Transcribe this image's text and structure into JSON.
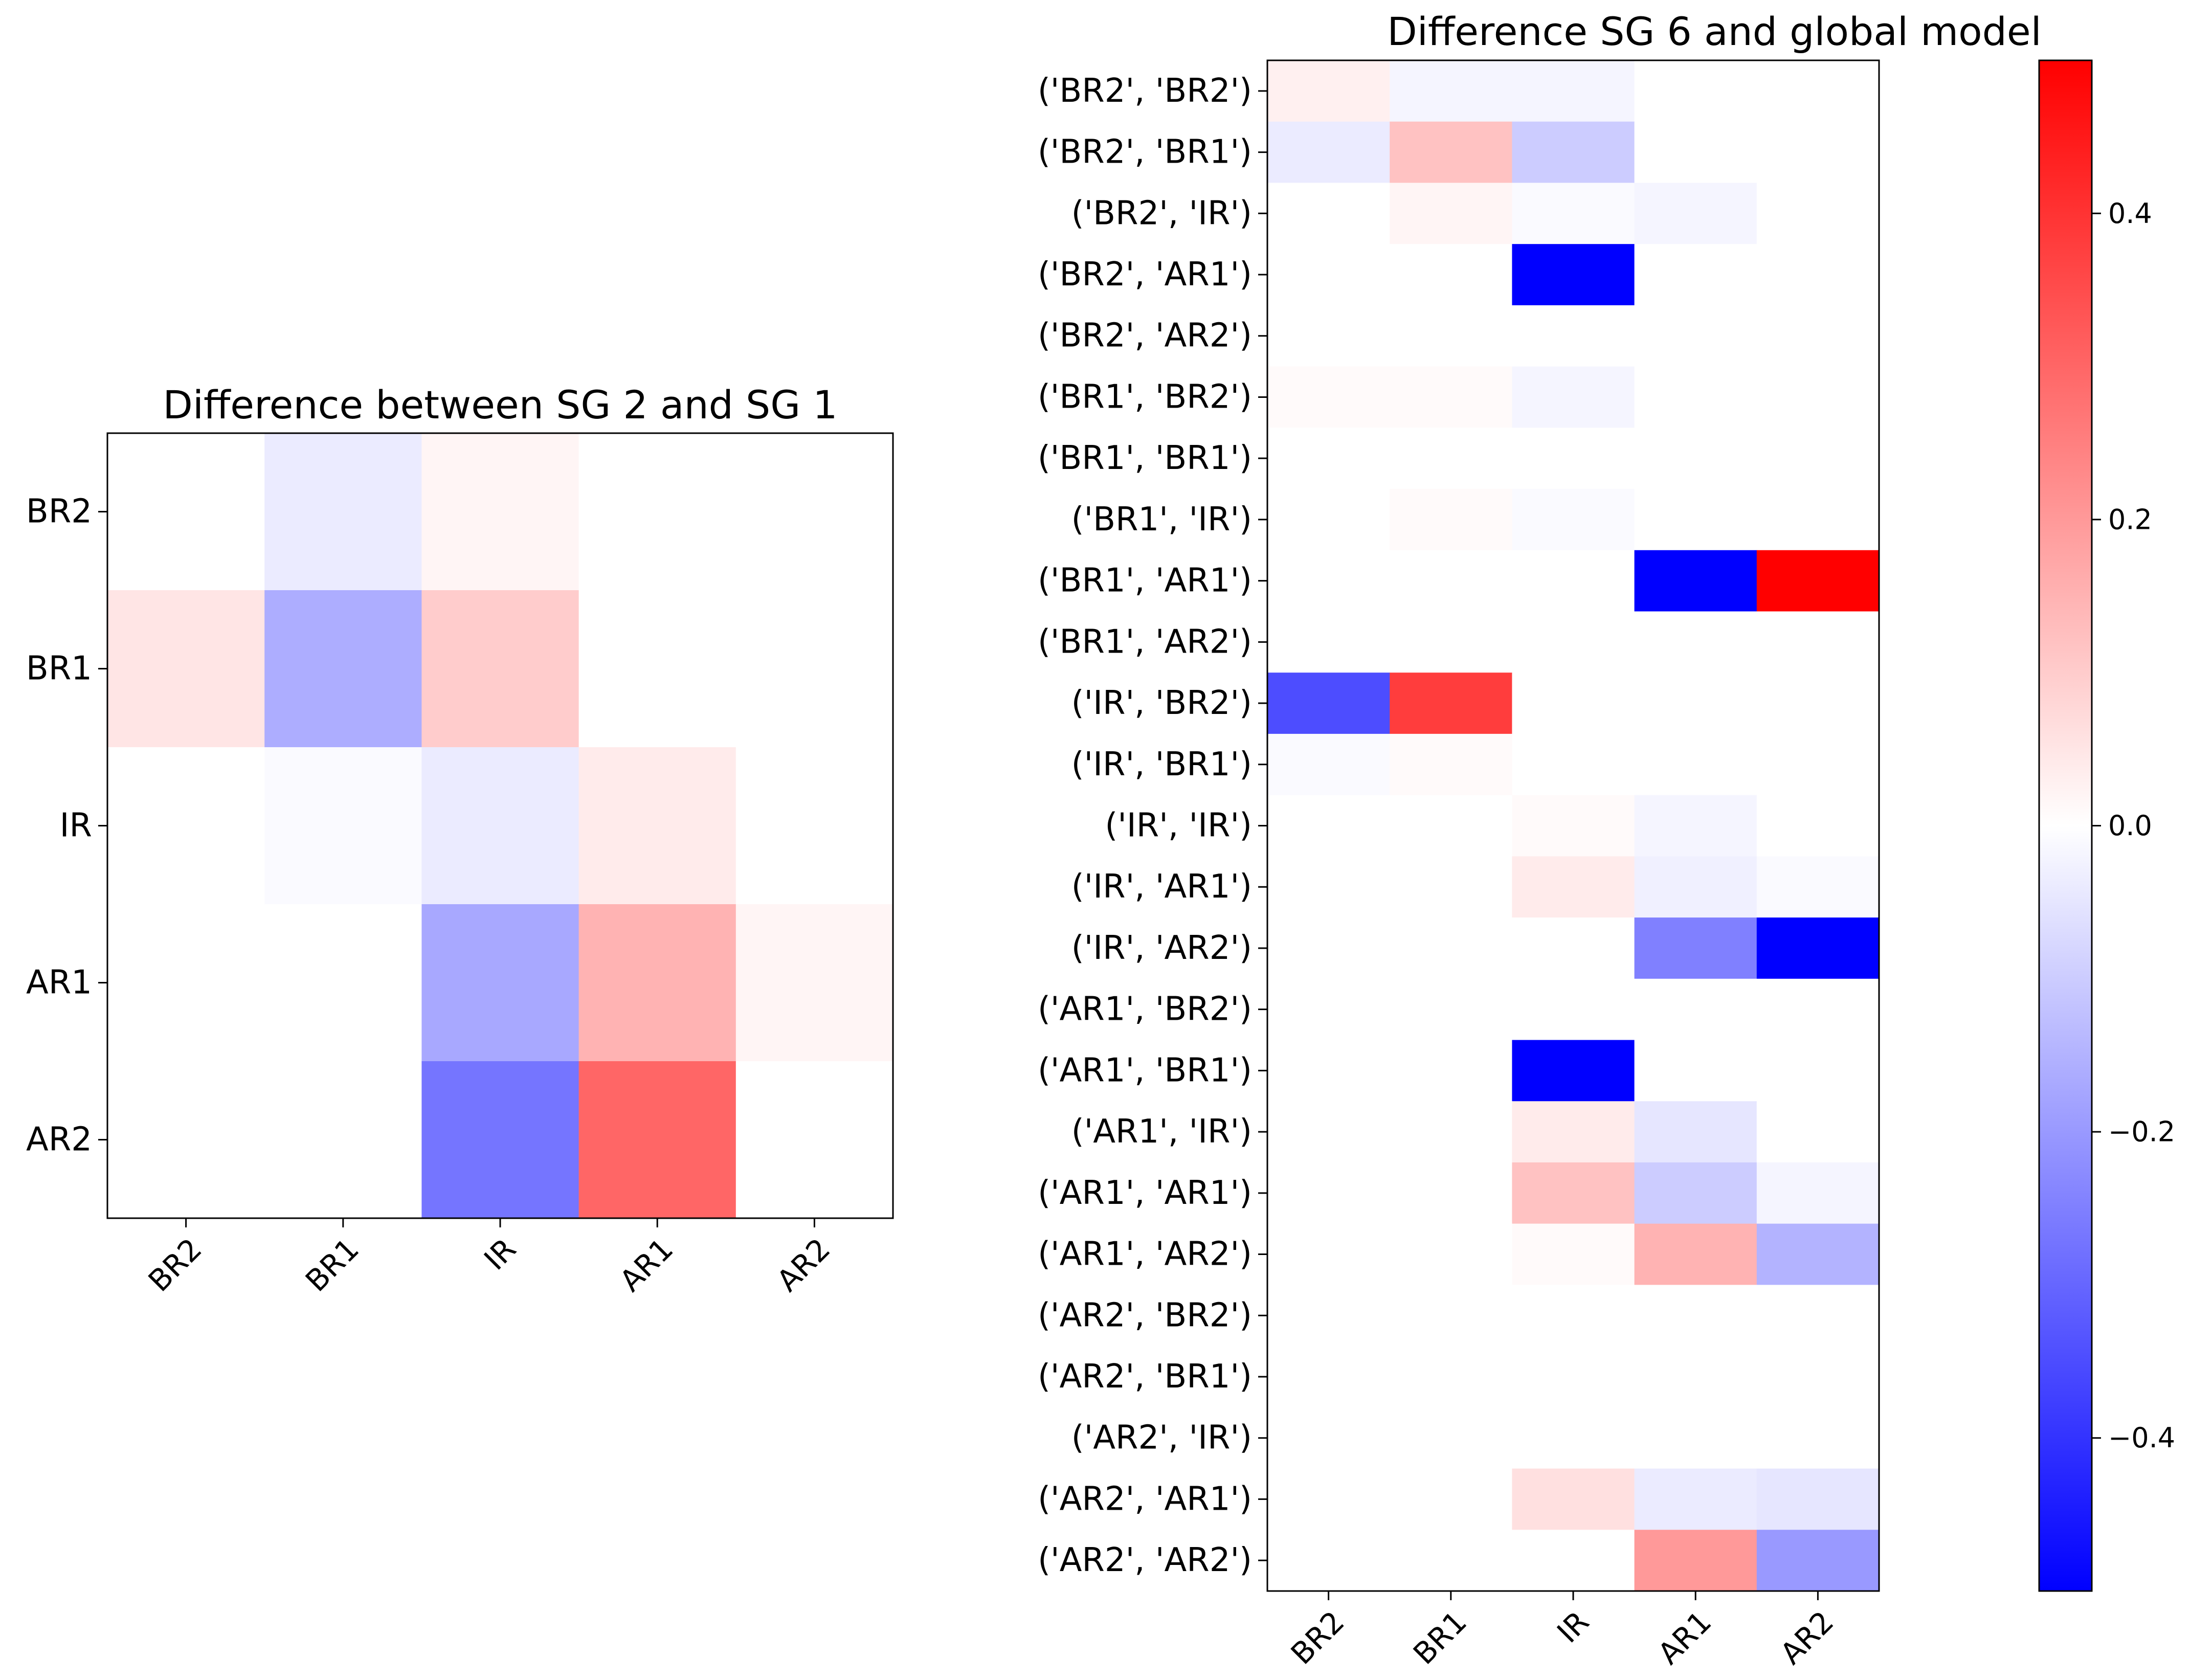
{
  "chart_data": [
    {
      "type": "heatmap",
      "title": "Difference between SG 2 and SG 1",
      "x_categories": [
        "BR2",
        "BR1",
        "IR",
        "AR1",
        "AR2"
      ],
      "y_categories": [
        "BR2",
        "BR1",
        "IR",
        "AR1",
        "AR2"
      ],
      "values": [
        [
          0.0,
          -0.04,
          0.02,
          0.0,
          0.0
        ],
        [
          0.05,
          -0.16,
          0.1,
          0.0,
          0.0
        ],
        [
          0.0,
          -0.01,
          -0.04,
          0.04,
          0.0
        ],
        [
          0.0,
          0.0,
          -0.17,
          0.15,
          0.02
        ],
        [
          0.0,
          0.0,
          -0.27,
          0.3,
          0.0
        ]
      ],
      "color_scale": {
        "cmap": "bwr",
        "vmin": -0.5,
        "vmax": 0.5
      }
    },
    {
      "type": "heatmap",
      "title": "Difference SG 6 and global model",
      "x_categories": [
        "BR2",
        "BR1",
        "IR",
        "AR1",
        "AR2"
      ],
      "y_categories": [
        "('BR2', 'BR2')",
        "('BR2', 'BR1')",
        "('BR2', 'IR')",
        "('BR2', 'AR1')",
        "('BR2', 'AR2')",
        "('BR1', 'BR2')",
        "('BR1', 'BR1')",
        "('BR1', 'IR')",
        "('BR1', 'AR1')",
        "('BR1', 'AR2')",
        "('IR', 'BR2')",
        "('IR', 'BR1')",
        "('IR', 'IR')",
        "('IR', 'AR1')",
        "('IR', 'AR2')",
        "('AR1', 'BR2')",
        "('AR1', 'BR1')",
        "('AR1', 'IR')",
        "('AR1', 'AR1')",
        "('AR1', 'AR2')",
        "('AR2', 'BR2')",
        "('AR2', 'BR1')",
        "('AR2', 'IR')",
        "('AR2', 'AR1')",
        "('AR2', 'AR2')"
      ],
      "values": [
        [
          0.03,
          -0.02,
          -0.02,
          0.0,
          0.0
        ],
        [
          -0.04,
          0.12,
          -0.1,
          0.0,
          0.0
        ],
        [
          0.0,
          0.02,
          -0.01,
          -0.02,
          0.0
        ],
        [
          0.0,
          0.0,
          -0.5,
          0.0,
          0.0
        ],
        [
          0.0,
          0.0,
          0.0,
          0.0,
          0.0
        ],
        [
          0.01,
          0.01,
          -0.02,
          0.0,
          0.0
        ],
        [
          0.0,
          0.0,
          0.0,
          0.0,
          0.0
        ],
        [
          0.0,
          0.01,
          -0.01,
          0.0,
          0.0
        ],
        [
          0.0,
          0.0,
          0.0,
          -0.5,
          0.5
        ],
        [
          0.0,
          0.0,
          0.0,
          0.0,
          0.0
        ],
        [
          -0.35,
          0.38,
          0.0,
          0.0,
          0.0
        ],
        [
          -0.01,
          0.01,
          0.0,
          0.0,
          0.0
        ],
        [
          0.0,
          0.0,
          0.01,
          -0.02,
          0.0
        ],
        [
          0.0,
          0.0,
          0.04,
          -0.03,
          -0.01
        ],
        [
          0.0,
          0.0,
          0.0,
          -0.25,
          -0.5
        ],
        [
          0.0,
          0.0,
          0.0,
          0.0,
          0.0
        ],
        [
          0.0,
          0.0,
          -0.5,
          0.0,
          0.0
        ],
        [
          0.0,
          0.0,
          0.04,
          -0.05,
          0.0
        ],
        [
          0.0,
          0.0,
          0.12,
          -0.1,
          -0.02
        ],
        [
          0.0,
          0.0,
          0.01,
          0.15,
          -0.15
        ],
        [
          0.0,
          0.0,
          0.0,
          0.0,
          0.0
        ],
        [
          0.0,
          0.0,
          0.0,
          0.0,
          0.0
        ],
        [
          0.0,
          0.0,
          0.0,
          0.0,
          0.0
        ],
        [
          0.0,
          0.0,
          0.06,
          -0.04,
          -0.05
        ],
        [
          0.0,
          0.0,
          0.0,
          0.2,
          -0.2
        ]
      ],
      "color_scale": {
        "cmap": "bwr",
        "vmin": -0.5,
        "vmax": 0.5
      }
    }
  ],
  "colorbar": {
    "vmin": -0.5,
    "vmax": 0.5,
    "ticks": [
      0.4,
      0.2,
      0.0,
      -0.2,
      -0.4
    ],
    "tick_labels": [
      "0.4",
      "0.2",
      "0.0",
      "−0.2",
      "−0.4"
    ],
    "colors": {
      "low": "#0000ff",
      "mid": "#ffffff",
      "high": "#ff0000"
    }
  }
}
